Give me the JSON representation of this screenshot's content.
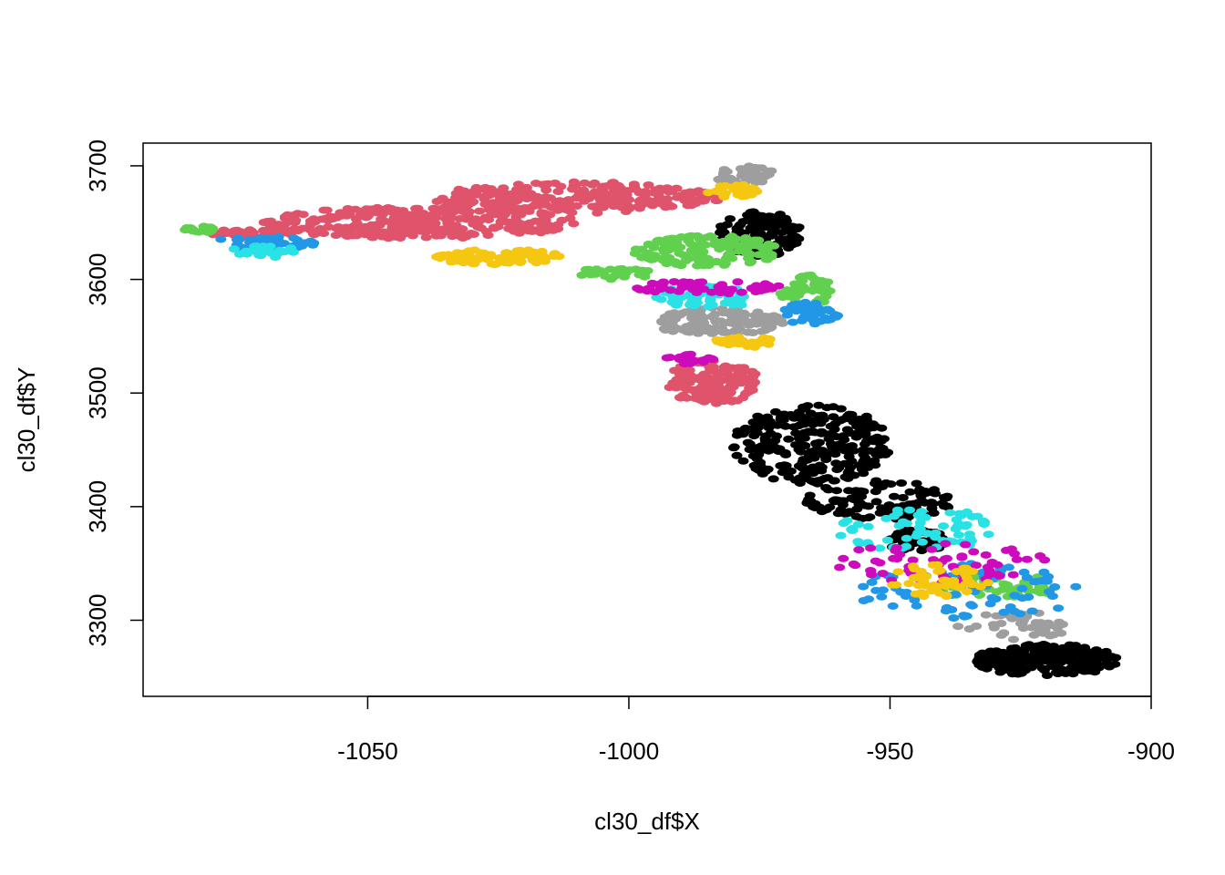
{
  "chart_data": {
    "type": "scatter",
    "title": "",
    "xlabel": "cl30_df$X",
    "ylabel": "cl30_df$Y",
    "xlim": [
      -1093,
      -900
    ],
    "ylim": [
      3233,
      3720
    ],
    "x_ticks": [
      -1050,
      -1000,
      -950,
      -900
    ],
    "x_tick_labels": [
      "-1050",
      "-1000",
      "-950",
      "-900"
    ],
    "y_ticks": [
      3300,
      3400,
      3500,
      3600,
      3700
    ],
    "y_tick_labels": [
      "3300",
      "3400",
      "3500",
      "3600",
      "3700"
    ],
    "grid": false,
    "legend": "none",
    "palette": [
      "#000000",
      "#DF536B",
      "#61D04F",
      "#2297E6",
      "#28E2E5",
      "#CD0BBC",
      "#F5C710",
      "#9E9E9E"
    ],
    "clusters": [
      {
        "color": "#DF536B",
        "center": [
          -1040,
          3650
        ],
        "extent": [
          30,
          14
        ],
        "n": 320
      },
      {
        "color": "#DF536B",
        "center": [
          -1010,
          3672
        ],
        "extent": [
          28,
          14
        ],
        "n": 260
      },
      {
        "color": "#DF536B",
        "center": [
          -984,
          3510
        ],
        "extent": [
          9,
          20
        ],
        "n": 160
      },
      {
        "color": "#DF536B",
        "center": [
          -1074,
          3640
        ],
        "extent": [
          10,
          4
        ],
        "n": 40
      },
      {
        "color": "#000000",
        "center": [
          -975,
          3640
        ],
        "extent": [
          8,
          20
        ],
        "n": 140
      },
      {
        "color": "#000000",
        "center": [
          -965,
          3455
        ],
        "extent": [
          15,
          35
        ],
        "n": 260
      },
      {
        "color": "#000000",
        "center": [
          -952,
          3405
        ],
        "extent": [
          14,
          18
        ],
        "n": 120
      },
      {
        "color": "#000000",
        "center": [
          -945,
          3370
        ],
        "extent": [
          6,
          10
        ],
        "n": 60
      },
      {
        "color": "#000000",
        "center": [
          -920,
          3265
        ],
        "extent": [
          14,
          14
        ],
        "n": 200
      },
      {
        "color": "#61D04F",
        "center": [
          -985,
          3625
        ],
        "extent": [
          14,
          14
        ],
        "n": 140
      },
      {
        "color": "#61D04F",
        "center": [
          -966,
          3590
        ],
        "extent": [
          5,
          14
        ],
        "n": 50
      },
      {
        "color": "#61D04F",
        "center": [
          -930,
          3330
        ],
        "extent": [
          12,
          12
        ],
        "n": 60
      },
      {
        "color": "#61D04F",
        "center": [
          -1082,
          3644
        ],
        "extent": [
          3,
          3
        ],
        "n": 20
      },
      {
        "color": "#61D04F",
        "center": [
          -1003,
          3605
        ],
        "extent": [
          8,
          5
        ],
        "n": 30
      },
      {
        "color": "#9E9E9E",
        "center": [
          -983,
          3563
        ],
        "extent": [
          13,
          12
        ],
        "n": 140
      },
      {
        "color": "#9E9E9E",
        "center": [
          -978,
          3692
        ],
        "extent": [
          6,
          8
        ],
        "n": 40
      },
      {
        "color": "#9E9E9E",
        "center": [
          -925,
          3295
        ],
        "extent": [
          12,
          12
        ],
        "n": 40
      },
      {
        "color": "#2297E6",
        "center": [
          -1070,
          3632
        ],
        "extent": [
          10,
          6
        ],
        "n": 60
      },
      {
        "color": "#2297E6",
        "center": [
          -935,
          3325
        ],
        "extent": [
          22,
          25
        ],
        "n": 80
      },
      {
        "color": "#2297E6",
        "center": [
          -965,
          3570
        ],
        "extent": [
          6,
          10
        ],
        "n": 40
      },
      {
        "color": "#28E2E5",
        "center": [
          -985,
          3585
        ],
        "extent": [
          10,
          10
        ],
        "n": 50
      },
      {
        "color": "#28E2E5",
        "center": [
          -945,
          3380
        ],
        "extent": [
          15,
          20
        ],
        "n": 70
      },
      {
        "color": "#28E2E5",
        "center": [
          -1070,
          3625
        ],
        "extent": [
          6,
          6
        ],
        "n": 30
      },
      {
        "color": "#CD0BBC",
        "center": [
          -985,
          3593
        ],
        "extent": [
          14,
          6
        ],
        "n": 60
      },
      {
        "color": "#CD0BBC",
        "center": [
          -940,
          3350
        ],
        "extent": [
          20,
          20
        ],
        "n": 60
      },
      {
        "color": "#CD0BBC",
        "center": [
          -988,
          3530
        ],
        "extent": [
          5,
          5
        ],
        "n": 20
      },
      {
        "color": "#F5C710",
        "center": [
          -1025,
          3620
        ],
        "extent": [
          12,
          7
        ],
        "n": 80
      },
      {
        "color": "#F5C710",
        "center": [
          -980,
          3678
        ],
        "extent": [
          5,
          6
        ],
        "n": 30
      },
      {
        "color": "#F5C710",
        "center": [
          -940,
          3335
        ],
        "extent": [
          10,
          15
        ],
        "n": 50
      },
      {
        "color": "#F5C710",
        "center": [
          -978,
          3545
        ],
        "extent": [
          6,
          5
        ],
        "n": 30
      }
    ]
  }
}
